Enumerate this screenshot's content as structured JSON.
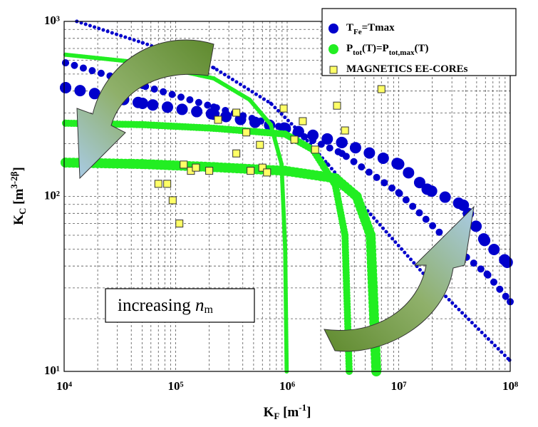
{
  "chart_data": {
    "type": "scatter",
    "xlabel": [
      "K",
      "F",
      " [m",
      "-1",
      "]"
    ],
    "ylabel": [
      "K",
      "C",
      " [m",
      "3-2β",
      "]"
    ],
    "annotation": [
      "increasing ",
      "n",
      "m"
    ],
    "xlog": true,
    "ylog": true,
    "grid": true,
    "legend": "upper right",
    "xlim": [
      10000,
      100000000
    ],
    "ylim": [
      10,
      1000
    ],
    "xticks": [
      {
        "value": 10000,
        "label": "10⁴"
      },
      {
        "value": 100000,
        "label": "10⁵"
      },
      {
        "value": 1000000,
        "label": "10⁶"
      },
      {
        "value": 10000000,
        "label": "10⁷"
      },
      {
        "value": 100000000,
        "label": "10⁸"
      }
    ],
    "yticks": [
      {
        "value": 10,
        "label": "10¹"
      },
      {
        "value": 100,
        "label": "10²"
      },
      {
        "value": 1000,
        "label": "10³"
      }
    ],
    "series": [
      {
        "name": [
          "T",
          "Fe",
          "=Tmax"
        ],
        "color": "#0000cc",
        "marker": "circle",
        "spacing": 2.6,
        "curves": [
          {
            "size": 2.5,
            "x": [
              13000,
              50500,
              220000,
              713000,
              1290000,
              2310000,
              5600000,
              18200000,
              98600000
            ],
            "values": [
              1000,
              755,
              543,
              340,
              234,
              153,
              79,
              34,
              11.6
            ]
          },
          {
            "size": 5,
            "x": [
              10300,
              50500,
              220000,
              960000,
              3100000,
              10000000,
              33000000,
              62000000,
              100000000
            ],
            "values": [
              580,
              430,
              324,
              245,
              176,
              105,
              50,
              36,
              25
            ]
          },
          {
            "size": 8,
            "x": [
              10300,
              50500,
              220000,
              960000,
              3100000,
              10000000,
              18000000,
              38000000,
              59000000,
              94000000
            ],
            "values": [
              418,
              340,
              295,
              245,
              203,
              153,
              110,
              89,
              56,
              42
            ]
          }
        ]
      },
      {
        "name": [
          "P",
          "tot",
          "(T)=P",
          "tot,max",
          "(T)"
        ],
        "color": "#22ee22",
        "marker": "circle",
        "spacing": 0.8,
        "curves": [
          {
            "size": 3,
            "x": [
              10300,
              50500,
              220000,
              460000,
              713000,
              890000,
              960000,
              990000
            ],
            "values": [
              645,
              580,
              472,
              357,
              257,
              153,
              50,
              10
            ]
          },
          {
            "size": 5,
            "x": [
              10300,
              50500,
              220000,
              960000,
              1700000,
              2700000,
              3300000,
              3600000
            ],
            "values": [
              262,
              257,
              245,
              227,
              185,
              116,
              60,
              10
            ]
          },
          {
            "size": 7,
            "x": [
              10300,
              50500,
              220000,
              960000,
              2700000,
              4200000,
              5600000,
              6300000
            ],
            "values": [
              156,
              153,
              147,
              140,
              127,
              100,
              60,
              10
            ]
          }
        ]
      },
      {
        "name": [
          "MAGNETICS EE-COREs"
        ],
        "color": "#ffff66",
        "marker": "square",
        "x": [
          70000,
          84000,
          94000,
          108000,
          118000,
          137000,
          152000,
          200000,
          240000,
          350000,
          350000,
          430000,
          470000,
          570000,
          600000,
          660000,
          930000,
          1160000,
          1380000,
          1780000,
          2800000,
          3300000,
          7000000
        ],
        "values": [
          118,
          118,
          95,
          70,
          152,
          140,
          146,
          140,
          274,
          301,
          176,
          232,
          140,
          197,
          146,
          137,
          318,
          211,
          269,
          185,
          330,
          238,
          410
        ]
      }
    ]
  }
}
